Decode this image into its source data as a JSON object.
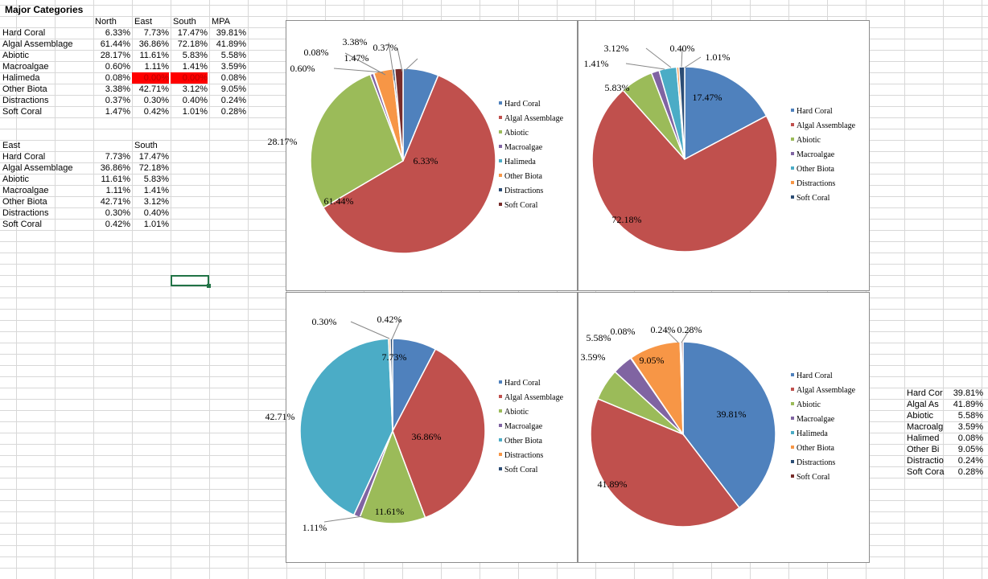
{
  "sheet": {
    "title": "Major Categories",
    "table1": {
      "headers": [
        "North",
        "East",
        "South",
        "MPA"
      ],
      "rows": [
        {
          "label": "Hard Coral",
          "values": [
            "6.33%",
            "7.73%",
            "17.47%",
            "39.81%"
          ]
        },
        {
          "label": "Algal Assemblage",
          "values": [
            "61.44%",
            "36.86%",
            "72.18%",
            "41.89%"
          ]
        },
        {
          "label": "Abiotic",
          "values": [
            "28.17%",
            "11.61%",
            "5.83%",
            "5.58%"
          ]
        },
        {
          "label": "Macroalgae",
          "values": [
            "0.60%",
            "1.11%",
            "1.41%",
            "3.59%"
          ]
        },
        {
          "label": "Halimeda",
          "values": [
            "0.08%",
            "0.00%",
            "0.00%",
            "0.08%"
          ]
        },
        {
          "label": "Other Biota",
          "values": [
            "3.38%",
            "42.71%",
            "3.12%",
            "9.05%"
          ]
        },
        {
          "label": "Distractions",
          "values": [
            "0.37%",
            "0.30%",
            "0.40%",
            "0.24%"
          ]
        },
        {
          "label": "Soft Coral",
          "values": [
            "1.47%",
            "0.42%",
            "1.01%",
            "0.28%"
          ]
        }
      ]
    },
    "table2": {
      "headers": [
        "East",
        "South"
      ],
      "rows": [
        {
          "label": "Hard Coral",
          "values": [
            "7.73%",
            "17.47%"
          ]
        },
        {
          "label": "Algal Assemblage",
          "values": [
            "36.86%",
            "72.18%"
          ]
        },
        {
          "label": "Abiotic",
          "values": [
            "11.61%",
            "5.83%"
          ]
        },
        {
          "label": "Macroalgae",
          "values": [
            "1.11%",
            "1.41%"
          ]
        },
        {
          "label": "Other Biota",
          "values": [
            "42.71%",
            "3.12%"
          ]
        },
        {
          "label": "Distractions",
          "values": [
            "0.30%",
            "0.40%"
          ]
        },
        {
          "label": "Soft Coral",
          "values": [
            "0.42%",
            "1.01%"
          ]
        }
      ]
    },
    "table3": {
      "rows": [
        {
          "label": "Hard Cor",
          "value": "39.81%"
        },
        {
          "label": "Algal As",
          "value": "41.89%"
        },
        {
          "label": "Abiotic",
          "value": "5.58%"
        },
        {
          "label": "Macroalg",
          "value": "3.59%"
        },
        {
          "label": "Halimed",
          "value": "0.08%"
        },
        {
          "label": "Other Bi",
          "value": "9.05%"
        },
        {
          "label": "Distractio",
          "value": "0.24%"
        },
        {
          "label": "Soft Cora",
          "value": "0.28%"
        }
      ]
    }
  },
  "colors": {
    "Hard Coral": "#4f81bd",
    "Algal Assemblage": "#c0504d",
    "Abiotic": "#9bbb59",
    "Macroalgae": "#8064a2",
    "Halimeda": "#4bacc6",
    "Other Biota": "#f79646",
    "Distractions": "#2c4d75",
    "Soft Coral": "#772c2a"
  },
  "chart_data": [
    {
      "type": "pie",
      "name": "north",
      "categories": [
        "Hard Coral",
        "Algal Assemblage",
        "Abiotic",
        "Macroalgae",
        "Halimeda",
        "Other Biota",
        "Distractions",
        "Soft Coral"
      ],
      "values": [
        6.33,
        61.44,
        28.17,
        0.6,
        0.08,
        3.38,
        0.37,
        1.47
      ],
      "labels": [
        "6.33%",
        "61.44%",
        "28.17%",
        "0.60%",
        "0.08%",
        "3.38%",
        "0.37%",
        "1.47%"
      ],
      "legend": [
        "Hard Coral",
        "Algal Assemblage",
        "Abiotic",
        "Macroalgae",
        "Halimeda",
        "Other Biota",
        "Distractions",
        "Soft Coral"
      ],
      "legend_position": "right"
    },
    {
      "type": "pie",
      "name": "south",
      "categories": [
        "Hard Coral",
        "Algal Assemblage",
        "Abiotic",
        "Macroalgae",
        "Other Biota",
        "Distractions",
        "Soft Coral"
      ],
      "values": [
        17.47,
        72.18,
        5.83,
        1.41,
        3.12,
        0.4,
        1.01
      ],
      "labels": [
        "17.47%",
        "72.18%",
        "5.83%",
        "1.41%",
        "3.12%",
        "0.40%",
        "1.01%"
      ],
      "colors": [
        "Hard Coral",
        "Algal Assemblage",
        "Abiotic",
        "Macroalgae",
        "Halimeda",
        "Other Biota",
        "Distractions"
      ],
      "legend": [
        "Hard Coral",
        "Algal Assemblage",
        "Abiotic",
        "Macroalgae",
        "Other Biota",
        "Distractions",
        "Soft Coral"
      ],
      "legend_colors": [
        "Hard Coral",
        "Algal Assemblage",
        "Abiotic",
        "Macroalgae",
        "Halimeda",
        "Other Biota",
        "Distractions"
      ],
      "legend_position": "right"
    },
    {
      "type": "pie",
      "name": "east",
      "categories": [
        "Hard Coral",
        "Algal Assemblage",
        "Abiotic",
        "Macroalgae",
        "Other Biota",
        "Distractions",
        "Soft Coral"
      ],
      "values": [
        7.73,
        36.86,
        11.61,
        1.11,
        42.71,
        0.3,
        0.42
      ],
      "labels": [
        "7.73%",
        "36.86%",
        "11.61%",
        "1.11%",
        "42.71%",
        "0.30%",
        "0.42%"
      ],
      "colors": [
        "Hard Coral",
        "Algal Assemblage",
        "Abiotic",
        "Macroalgae",
        "Halimeda",
        "Other Biota",
        "Distractions"
      ],
      "legend": [
        "Hard Coral",
        "Algal Assemblage",
        "Abiotic",
        "Macroalgae",
        "Other Biota",
        "Distractions",
        "Soft Coral"
      ],
      "legend_colors": [
        "Hard Coral",
        "Algal Assemblage",
        "Abiotic",
        "Macroalgae",
        "Halimeda",
        "Other Biota",
        "Distractions"
      ],
      "legend_position": "right"
    },
    {
      "type": "pie",
      "name": "mpa",
      "categories": [
        "Hard Coral",
        "Algal Assemblage",
        "Abiotic",
        "Macroalgae",
        "Halimeda",
        "Other Biota",
        "Distractions",
        "Soft Coral"
      ],
      "values": [
        39.81,
        41.89,
        5.58,
        3.59,
        0.08,
        9.05,
        0.24,
        0.28
      ],
      "labels": [
        "39.81%",
        "41.89%",
        "5.58%",
        "3.59%",
        "0.08%",
        "9.05%",
        "0.24%",
        "0.28%"
      ],
      "legend": [
        "Hard Coral",
        "Algal Assemblage",
        "Abiotic",
        "Macroalgae",
        "Halimeda",
        "Other Biota",
        "Distractions",
        "Soft Coral"
      ],
      "legend_position": "right"
    }
  ]
}
